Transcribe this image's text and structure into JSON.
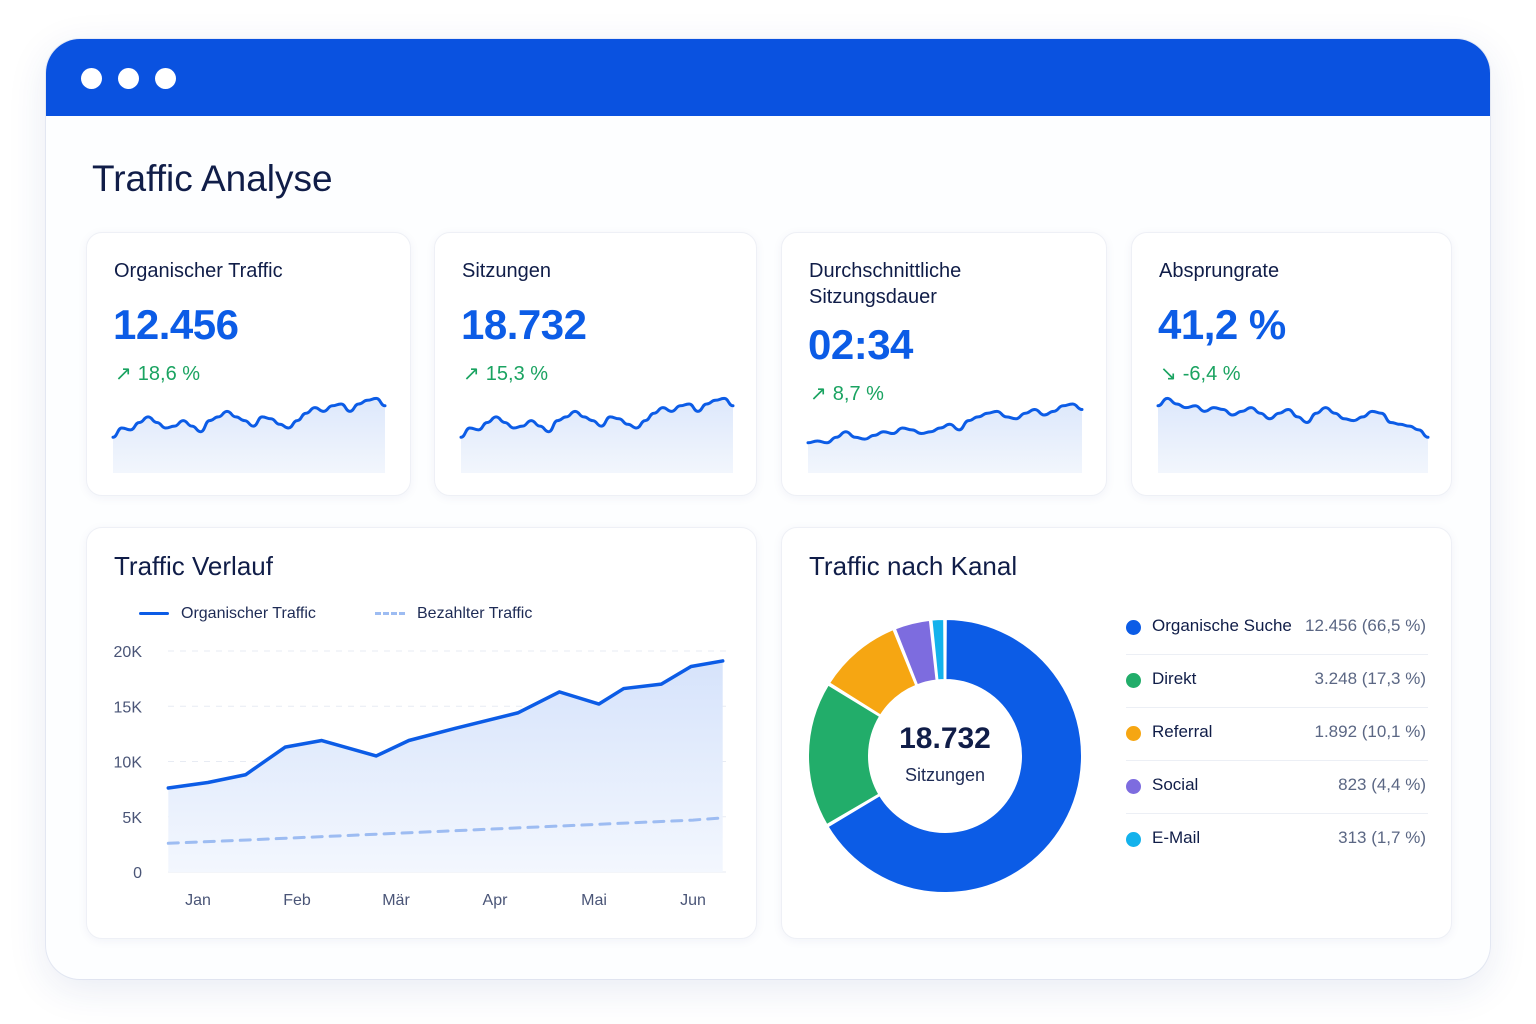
{
  "colors": {
    "header": "#0a52e0",
    "accent": "#0c5ce6",
    "positive": "#1aa361",
    "paid_line": "#9dbcf2"
  },
  "page": {
    "title": "Traffic Analyse"
  },
  "kpis": [
    {
      "label": "Organischer Traffic",
      "value": "12.456",
      "change": "18,6 %",
      "trend": "up",
      "spark": [
        30,
        40,
        38,
        46,
        52,
        46,
        40,
        42,
        48,
        42,
        36,
        48,
        52,
        58,
        52,
        48,
        42,
        52,
        50,
        44,
        40,
        48,
        56,
        62,
        58,
        64,
        66,
        58,
        66,
        70,
        72,
        64
      ]
    },
    {
      "label": "Sitzungen",
      "value": "18.732",
      "change": "15,3 %",
      "trend": "up",
      "spark": [
        30,
        40,
        38,
        46,
        52,
        46,
        40,
        42,
        48,
        42,
        36,
        48,
        52,
        58,
        52,
        48,
        42,
        52,
        50,
        44,
        40,
        48,
        56,
        62,
        58,
        64,
        66,
        58,
        66,
        70,
        72,
        64
      ]
    },
    {
      "label": "Durchschnittliche Sitzungsdauer",
      "value": "02:34",
      "change": "8,7 %",
      "trend": "up",
      "spark": [
        24,
        26,
        24,
        30,
        36,
        30,
        28,
        32,
        36,
        34,
        40,
        38,
        34,
        36,
        40,
        44,
        38,
        48,
        52,
        56,
        58,
        52,
        50,
        56,
        60,
        54,
        58,
        64,
        66,
        60
      ]
    },
    {
      "label": "Absprungrate",
      "value": "41,2 %",
      "change": "-6,4 %",
      "trend": "down",
      "spark": [
        64,
        72,
        66,
        62,
        64,
        58,
        62,
        60,
        54,
        58,
        62,
        56,
        50,
        56,
        60,
        52,
        46,
        56,
        62,
        56,
        50,
        48,
        52,
        58,
        56,
        46,
        44,
        42,
        38,
        30
      ]
    }
  ],
  "trend_chart": {
    "title": "Traffic Verlauf",
    "legend": {
      "organic": "Organischer Traffic",
      "paid": "Bezahlter Traffic"
    },
    "y_ticks": [
      "20K",
      "15K",
      "10K",
      "5K",
      "0"
    ],
    "x_ticks": [
      "Jan",
      "Feb",
      "Mär",
      "Apr",
      "Mai",
      "Jun"
    ]
  },
  "chart_data": [
    {
      "type": "line",
      "ylim": [
        0,
        20000
      ],
      "grid": true,
      "legend_position": "top-left",
      "x": [
        0,
        0.5,
        1,
        1.5,
        2,
        2.5,
        3,
        3.5,
        4,
        4.5,
        5,
        5.5
      ],
      "x_labels": [
        "Jan",
        "Feb",
        "Mär",
        "Apr",
        "Mai",
        "Jun"
      ],
      "series": [
        {
          "name": "Organischer Traffic",
          "style": "solid",
          "x": [
            -0.3,
            0.1,
            0.48,
            0.88,
            1.25,
            1.8,
            2.13,
            2.6,
            3.23,
            3.65,
            4.05,
            4.3,
            4.68,
            4.98,
            5.3
          ],
          "values": [
            7600,
            8100,
            8800,
            11300,
            11900,
            10500,
            11900,
            13000,
            14400,
            16300,
            15200,
            16600,
            17000,
            18600,
            19100
          ]
        },
        {
          "name": "Bezahlter Traffic",
          "style": "dashed",
          "x": [
            -0.3,
            0.5,
            1,
            1.5,
            2,
            2.5,
            3,
            3.5,
            4,
            4.5,
            5,
            5.3
          ],
          "values": [
            2600,
            2900,
            3100,
            3300,
            3500,
            3700,
            3900,
            4100,
            4300,
            4500,
            4700,
            4900
          ]
        }
      ]
    },
    {
      "type": "pie",
      "title": "Traffic nach Kanal",
      "center_value": "18.732",
      "center_label": "Sitzungen",
      "series": [
        {
          "name": "Organische Suche",
          "value": 12456,
          "percent": 66.5,
          "display": "12.456 (66,5 %)",
          "color": "#0c5ce6"
        },
        {
          "name": "Direkt",
          "value": 3248,
          "percent": 17.3,
          "display": "3.248 (17,3 %)",
          "color": "#22ad6a"
        },
        {
          "name": "Referral",
          "value": 1892,
          "percent": 10.1,
          "display": "1.892 (10,1 %)",
          "color": "#f6a612"
        },
        {
          "name": "Social",
          "value": 823,
          "percent": 4.4,
          "display": "823 (4,4 %)",
          "color": "#7d6cdf"
        },
        {
          "name": "E-Mail",
          "value": 313,
          "percent": 1.7,
          "display": "313 (1,7 %)",
          "color": "#13b2ec"
        }
      ]
    }
  ]
}
